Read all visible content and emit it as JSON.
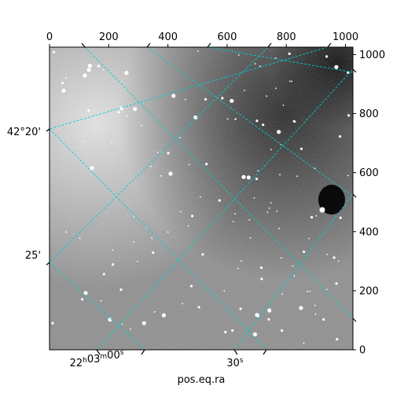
{
  "chart_data": {
    "type": "image",
    "colormap": "gray",
    "xlabel": "pos.eq.ra",
    "pixel_axes": {
      "x_ticks": [
        "0",
        "200",
        "400",
        "600",
        "800",
        "1000"
      ],
      "x_tick_values": [
        0,
        200,
        400,
        600,
        800,
        1000
      ],
      "y_ticks": [
        "0",
        "200",
        "400",
        "600",
        "800",
        "1000"
      ],
      "y_tick_values": [
        0,
        200,
        400,
        600,
        800,
        1000
      ],
      "xlim": [
        0,
        1025
      ],
      "ylim": [
        0,
        1025
      ]
    },
    "world_axes": {
      "ra_ticks": [
        "22h03m00s",
        "30s"
      ],
      "dec_ticks": [
        "42°20'",
        "25'"
      ],
      "grid_color": "#00ced1"
    }
  }
}
